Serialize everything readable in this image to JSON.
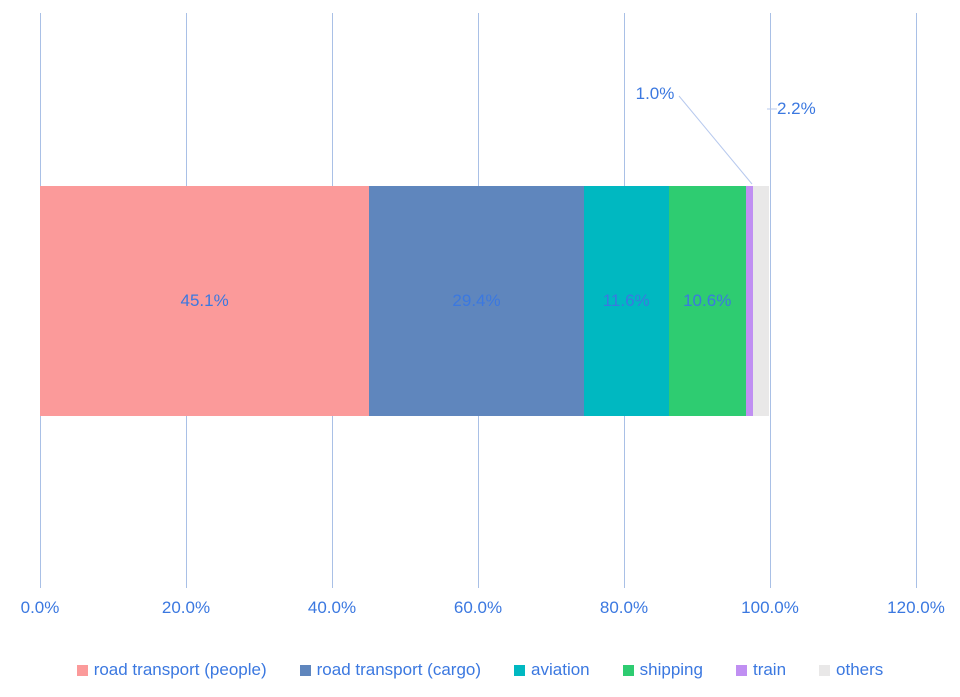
{
  "chart_data": {
    "type": "bar",
    "orientation": "horizontal-stacked",
    "title": "",
    "xlabel": "",
    "ylabel": "",
    "grid": true,
    "legend_position": "bottom",
    "x_axis": {
      "min": 0,
      "max": 120,
      "ticks": [
        0,
        20,
        40,
        60,
        80,
        100,
        120
      ],
      "tick_labels": [
        "0.0%",
        "20.0%",
        "40.0%",
        "60.0%",
        "80.0%",
        "100.0%",
        "120.0%"
      ]
    },
    "segments": [
      {
        "name": "road transport (people)",
        "value": 45.1,
        "label": "45.1%",
        "color": "#fb9a9a",
        "label_placement": "inside"
      },
      {
        "name": "road transport (cargo)",
        "value": 29.4,
        "label": "29.4%",
        "color": "#5f86bd",
        "label_placement": "inside"
      },
      {
        "name": "aviation",
        "value": 11.6,
        "label": "11.6%",
        "color": "#00b8c1",
        "label_placement": "inside"
      },
      {
        "name": "shipping",
        "value": 10.6,
        "label": "10.6%",
        "color": "#2ecc71",
        "label_placement": "inside"
      },
      {
        "name": "train",
        "value": 1.0,
        "label": "1.0%",
        "color": "#c08ff2",
        "label_placement": "callout"
      },
      {
        "name": "others",
        "value": 2.2,
        "label": "2.2%",
        "color": "#e9e8e8",
        "label_placement": "callout"
      }
    ],
    "legend": [
      "road transport (people)",
      "road transport (cargo)",
      "aviation",
      "shipping",
      "train",
      "others"
    ]
  },
  "colors": {
    "text": "#3b78e0",
    "gridline": "#a9c0e6",
    "leader_line": "#b7c9ee",
    "background": "#ffffff"
  }
}
